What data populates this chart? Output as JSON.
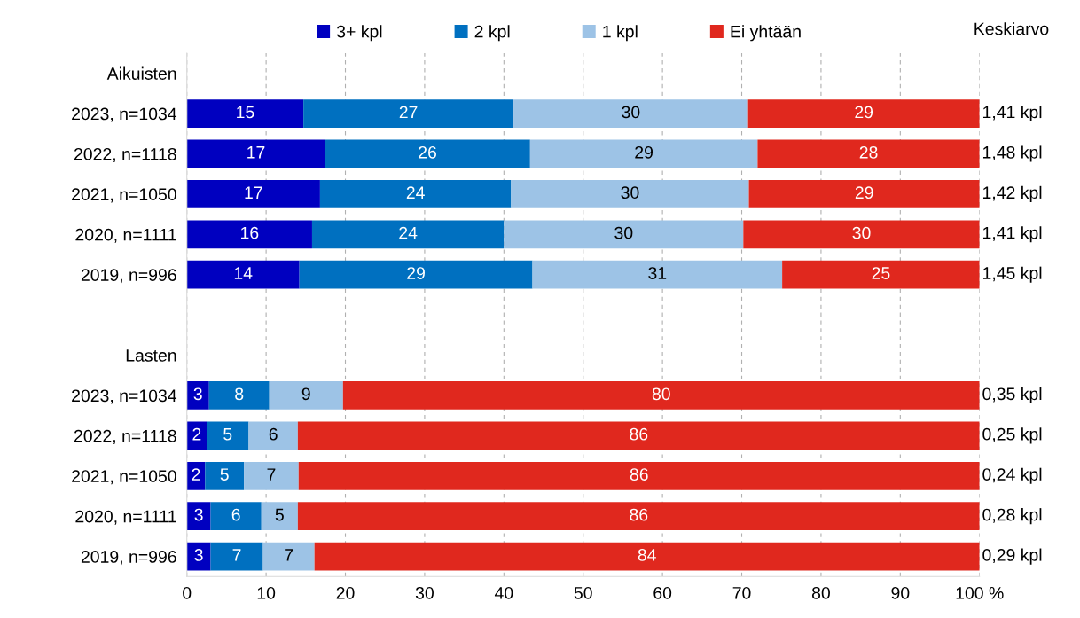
{
  "chart_data": {
    "type": "bar",
    "orientation": "horizontal",
    "stacked": true,
    "categories": [
      "Aikuisten",
      "2023, n=1034",
      "2022, n=1118",
      "2021, n=1050",
      "2020, n=1111",
      "2019, n=996",
      null,
      "Lasten",
      "2023, n=1034",
      "2022, n=1118",
      "2021, n=1050",
      "2020, n=1111",
      "2019, n=996"
    ],
    "series": [
      {
        "name": "3+ kpl",
        "color": "#0000c0",
        "values": [
          null,
          14.7,
          17.4,
          16.8,
          15.8,
          14.2,
          null,
          null,
          2.8,
          2.5,
          2.3,
          3.0,
          3.0
        ],
        "value_labels": [
          null,
          "15",
          "17",
          "17",
          "16",
          "14",
          null,
          null,
          "3",
          "2",
          "2",
          "3",
          "3"
        ]
      },
      {
        "name": "2 kpl",
        "color": "#0070c0",
        "values": [
          null,
          26.5,
          25.9,
          24.1,
          24.2,
          29.4,
          null,
          null,
          7.6,
          5.3,
          4.9,
          6.4,
          6.6
        ],
        "value_labels": [
          null,
          "27",
          "26",
          "24",
          "24",
          "29",
          null,
          null,
          "8",
          "5",
          "5",
          "6",
          "7"
        ]
      },
      {
        "name": "1 kpl",
        "color": "#9dc3e6",
        "values": [
          null,
          29.6,
          28.7,
          30.0,
          30.2,
          31.5,
          null,
          null,
          9.3,
          6.2,
          6.9,
          4.6,
          6.5
        ],
        "value_labels": [
          null,
          "30",
          "29",
          "30",
          "30",
          "31",
          null,
          null,
          "9",
          "6",
          "7",
          "5",
          "7"
        ]
      },
      {
        "name": "Ei yhtään",
        "color": "#e0281e",
        "values": [
          null,
          29.2,
          28.0,
          29.1,
          29.8,
          24.9,
          null,
          null,
          80.3,
          86.0,
          85.9,
          86.0,
          83.9
        ],
        "value_labels": [
          null,
          "29",
          "28",
          "29",
          "30",
          "25",
          null,
          null,
          "80",
          "86",
          "86",
          "86",
          "84"
        ]
      }
    ],
    "annotations": [
      "Keskiarvo",
      "1,41 kpl",
      "1,48 kpl",
      "1,42 kpl",
      "1,41 kpl",
      "1,45 kpl",
      "0,35 kpl",
      "0,25 kpl",
      "0,24 kpl",
      "0,28 kpl",
      "0,29 kpl"
    ],
    "xlim": [
      0,
      100
    ],
    "xticks": [
      0,
      10,
      20,
      30,
      40,
      50,
      60,
      70,
      80,
      90,
      {
        "value": 100,
        "label": "100 %"
      }
    ],
    "grid": "x",
    "legend": "top"
  }
}
